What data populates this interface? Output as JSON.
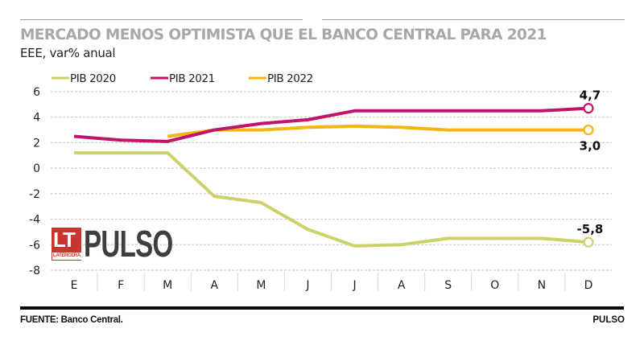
{
  "header": {
    "title": "MERCADO MENOS OPTIMISTA QUE EL BANCO CENTRAL PARA 2021",
    "subtitle": "EEE, var% anual"
  },
  "footer": {
    "source": "FUENTE: Banco Central.",
    "credit": "PULSO"
  },
  "logo": {
    "badge": "LT",
    "badge_sub": "LATERCERA",
    "wordmark": "PULSO",
    "badge_color": "#c7362f"
  },
  "chart_data": {
    "type": "line",
    "title": "MERCADO MENOS OPTIMISTA QUE EL BANCO CENTRAL PARA 2021",
    "subtitle": "EEE, var% anual",
    "xlabel": "",
    "ylabel": "",
    "categories": [
      "E",
      "F",
      "M",
      "A",
      "M",
      "J",
      "J",
      "A",
      "S",
      "O",
      "N",
      "D"
    ],
    "ylim": [
      -8,
      6
    ],
    "yticks": [
      6,
      4,
      2,
      0,
      -2,
      -4,
      -6,
      -8
    ],
    "grid": true,
    "legend_position": "top-left",
    "series": [
      {
        "name": "PIB 2020",
        "color": "#cdd16a",
        "values": [
          1.2,
          1.2,
          1.2,
          -2.2,
          -2.7,
          -4.8,
          -6.1,
          -6.0,
          -5.5,
          -5.5,
          -5.5,
          -5.8
        ],
        "end_label": "-5,8",
        "end_label_pos": "above"
      },
      {
        "name": "PIB 2021",
        "color": "#c2136b",
        "values": [
          2.5,
          2.2,
          2.1,
          3.0,
          3.5,
          3.8,
          4.5,
          4.5,
          4.5,
          4.5,
          4.5,
          4.7
        ],
        "end_label": "4,7",
        "end_label_pos": "above"
      },
      {
        "name": "PIB 2022",
        "color": "#f5b514",
        "values": [
          null,
          null,
          2.5,
          3.0,
          3.0,
          3.2,
          3.3,
          3.2,
          3.0,
          3.0,
          3.0,
          3.0
        ],
        "end_label": "3,0",
        "end_label_pos": "below"
      }
    ]
  }
}
